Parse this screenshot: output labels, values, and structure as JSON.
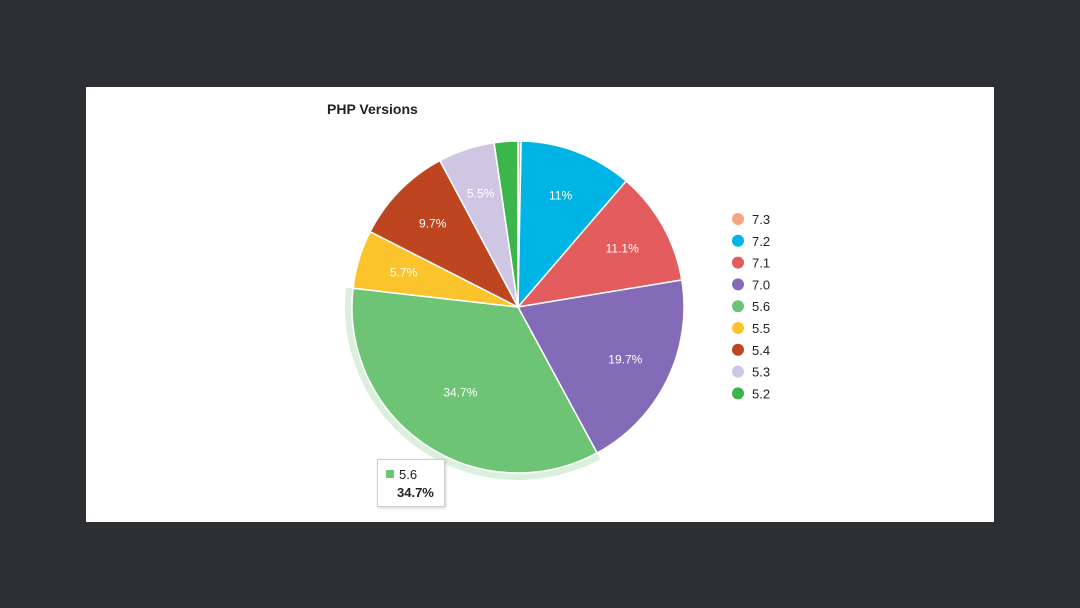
{
  "chart_data": {
    "type": "pie",
    "title": "PHP Versions",
    "slices": [
      {
        "label": "7.3",
        "value": 0.3,
        "color": "#f4a582",
        "shown_label": ""
      },
      {
        "label": "7.2",
        "value": 11.0,
        "color": "#00b4e6",
        "shown_label": "11%"
      },
      {
        "label": "7.1",
        "value": 11.1,
        "color": "#e35d5e",
        "shown_label": "11.1%"
      },
      {
        "label": "7.0",
        "value": 19.7,
        "color": "#846bb8",
        "shown_label": "19.7%"
      },
      {
        "label": "5.6",
        "value": 34.7,
        "color": "#6cc474",
        "shown_label": "34.7%"
      },
      {
        "label": "5.5",
        "value": 5.7,
        "color": "#fbc42c",
        "shown_label": "5.7%"
      },
      {
        "label": "5.4",
        "value": 9.7,
        "color": "#bd4621",
        "shown_label": "9.7%"
      },
      {
        "label": "5.3",
        "value": 5.5,
        "color": "#cfc6e3",
        "shown_label": "5.5%"
      },
      {
        "label": "5.2",
        "value": 2.3,
        "color": "#3cb54a",
        "shown_label": ""
      }
    ],
    "legend_position": "right",
    "highlighted": "5.6"
  },
  "tooltip": {
    "label": "5.6",
    "value": "34.7%"
  },
  "colors": {
    "background": "#2e2f33",
    "card": "#ffffff"
  }
}
